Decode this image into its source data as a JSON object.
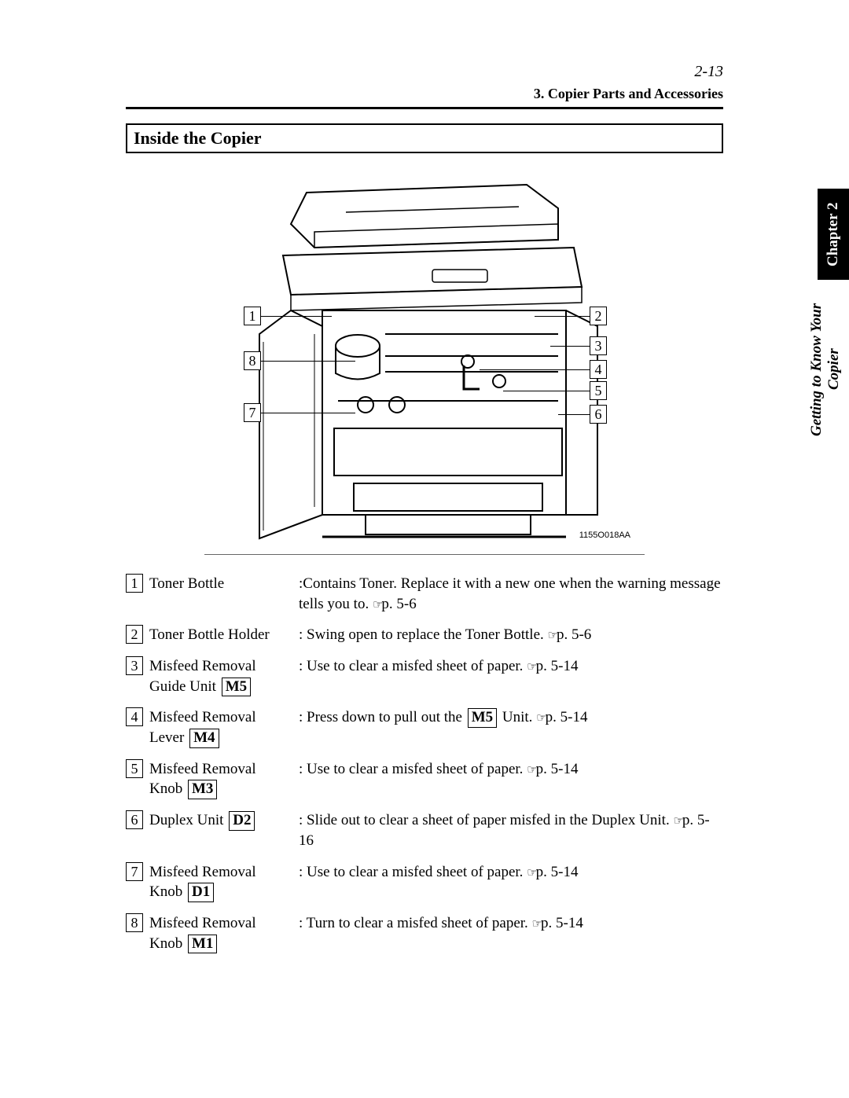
{
  "pageNumber": "2-13",
  "sectionHeader": "3. Copier Parts and Accessories",
  "title": "Inside the Copier",
  "figureId": "1155O018AA",
  "sideTab": {
    "chapter": "Chapter 2",
    "subtitle": "Getting to Know Your Copier"
  },
  "refIcon": "☞",
  "callouts": {
    "c1": "1",
    "c2": "2",
    "c3": "3",
    "c4": "4",
    "c5": "5",
    "c6": "6",
    "c7": "7",
    "c8": "8"
  },
  "items": [
    {
      "num": "1",
      "label": "Toner Bottle",
      "code": null,
      "descPrefix": ":Contains Toner. Replace it with a new one when the warning message tells you to. ",
      "descSuffix": "p. 5-6"
    },
    {
      "num": "2",
      "label": "Toner Bottle Holder",
      "code": null,
      "descPrefix": ": Swing open to replace the Toner Bottle. ",
      "descSuffix": "p. 5-6"
    },
    {
      "num": "3",
      "label": "Misfeed Removal Guide Unit ",
      "code": "M5",
      "descPrefix": ": Use to clear a misfed sheet of paper. ",
      "descSuffix": "p. 5-14"
    },
    {
      "num": "4",
      "label": "Misfeed Removal Lever ",
      "code": "M4",
      "descPrefix": ": Press down to pull out the ",
      "inlineCode": "M5",
      "descMid": " Unit. ",
      "descSuffix": "p. 5-14"
    },
    {
      "num": "5",
      "label": "Misfeed Removal Knob ",
      "code": "M3",
      "descPrefix": ": Use to clear a misfed sheet of paper. ",
      "descSuffix": "p. 5-14"
    },
    {
      "num": "6",
      "label": "Duplex Unit ",
      "code": "D2",
      "descPrefix": ": Slide out to clear a sheet of paper misfed in the Duplex Unit. ",
      "descSuffix": "p. 5-16"
    },
    {
      "num": "7",
      "label": "Misfeed Removal Knob ",
      "code": "D1",
      "descPrefix": ": Use to clear a misfed sheet of paper. ",
      "descSuffix": "p. 5-14"
    },
    {
      "num": "8",
      "label": "Misfeed Removal Knob ",
      "code": "M1",
      "descPrefix": ": Turn to clear a misfed sheet of paper. ",
      "descSuffix": "p. 5-14"
    }
  ]
}
